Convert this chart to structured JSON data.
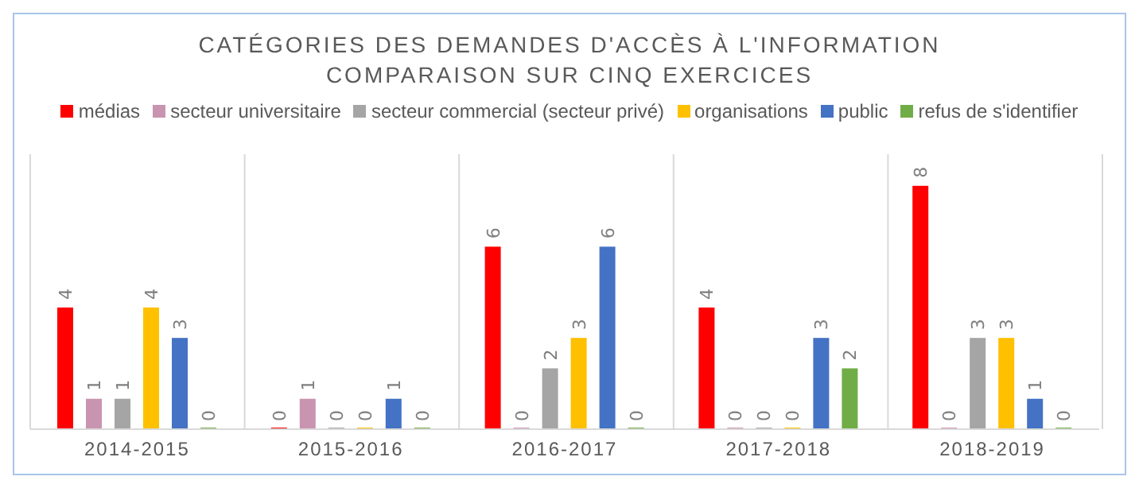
{
  "chart_data": {
    "type": "bar",
    "title": "CATÉGORIES DES DEMANDES D'ACCÈS À L'INFORMATION\nCOMPARAISON SUR CINQ EXERCICES",
    "categories": [
      "2014-2015",
      "2015-2016",
      "2016-2017",
      "2017-2018",
      "2018-2019"
    ],
    "series": [
      {
        "name": "médias",
        "color": "#ff0000",
        "values": [
          4,
          0,
          6,
          4,
          8
        ]
      },
      {
        "name": "secteur universitaire",
        "color": "#c994b0",
        "values": [
          1,
          1,
          0,
          0,
          0
        ]
      },
      {
        "name": "secteur commercial (secteur privé)",
        "color": "#a5a5a5",
        "values": [
          1,
          0,
          2,
          0,
          3
        ]
      },
      {
        "name": "organisations",
        "color": "#ffc000",
        "values": [
          4,
          0,
          3,
          0,
          3
        ]
      },
      {
        "name": "public",
        "color": "#4472c4",
        "values": [
          3,
          1,
          6,
          3,
          1
        ]
      },
      {
        "name": "refus de s'identifier",
        "color": "#70ad47",
        "values": [
          0,
          0,
          0,
          2,
          0
        ]
      }
    ],
    "data_labels": true,
    "grid": "x",
    "legend": "top"
  }
}
